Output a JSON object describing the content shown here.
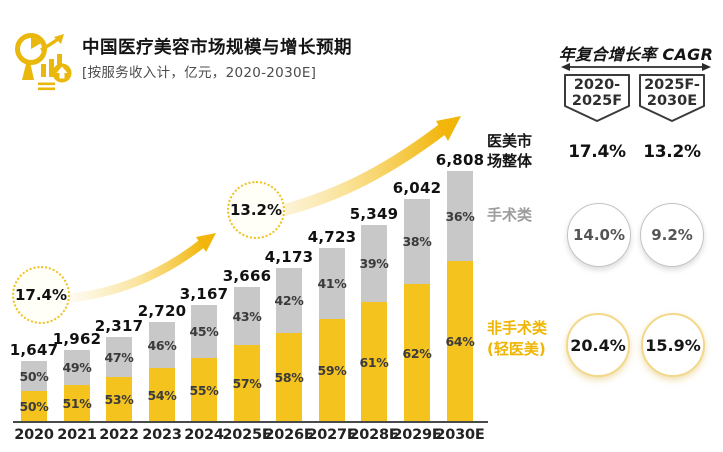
{
  "header": {
    "title": "中国医疗美容市场规模与增长预期",
    "subtitle": "[按服务收入计，亿元，2020-2030E]",
    "icon": "analytics-magnifier-chart-icon"
  },
  "colors": {
    "bar_yellow": "#f5c31d",
    "bar_gray": "#c8c8c8",
    "legend_yellow": "#f0b500",
    "legend_gray": "#9d9d9d",
    "arrow_yellow": "#f2b50a",
    "badge_border": "#eec11e"
  },
  "chart_data": {
    "type": "bar",
    "stacked": true,
    "unit": "亿元",
    "title": "中国医疗美容市场规模与增长预期",
    "subtitle": "[按服务收入计，亿元，2020-2030E]",
    "categories": [
      "2020",
      "2021",
      "2022",
      "2023",
      "2024",
      "2025F",
      "2026E",
      "2027E",
      "2028E",
      "2029E",
      "2030E"
    ],
    "totals": [
      1647,
      1962,
      2317,
      2720,
      3167,
      3666,
      4173,
      4723,
      5349,
      6042,
      6808
    ],
    "total_labels": [
      "1,647",
      "1,962",
      "2,317",
      "2,720",
      "3,167",
      "3,666",
      "4,173",
      "4,723",
      "5,349",
      "6,042",
      "6,808"
    ],
    "series": [
      {
        "name": "手术类",
        "color": "#c8c8c8",
        "values_pct": [
          50,
          49,
          47,
          46,
          45,
          43,
          42,
          41,
          39,
          38,
          36
        ]
      },
      {
        "name": "非手术类(轻医美)",
        "color": "#f5c31d",
        "values_pct": [
          50,
          51,
          53,
          54,
          55,
          57,
          58,
          59,
          61,
          62,
          64
        ]
      }
    ],
    "annotations": [
      {
        "label": "17.4%",
        "type": "dotted-badge"
      },
      {
        "label": "13.2%",
        "type": "dotted-badge"
      }
    ],
    "legend_position": "right",
    "ylim": [
      0,
      6808
    ]
  },
  "legend": {
    "overall": "医美市场整体",
    "surgical": "手术类",
    "non_surgical_line1": "非手术类",
    "non_surgical_line2": "(轻医美)"
  },
  "cagr_panel": {
    "title": "年复合增长率 CAGR",
    "periods": [
      {
        "line1": "2020-",
        "line2": "2025F"
      },
      {
        "line1": "2025F-",
        "line2": "2030E"
      }
    ],
    "overall": [
      "17.4%",
      "13.2%"
    ],
    "surgical": [
      "14.0%",
      "9.2%"
    ],
    "non_surgical": [
      "20.4%",
      "15.9%"
    ]
  }
}
